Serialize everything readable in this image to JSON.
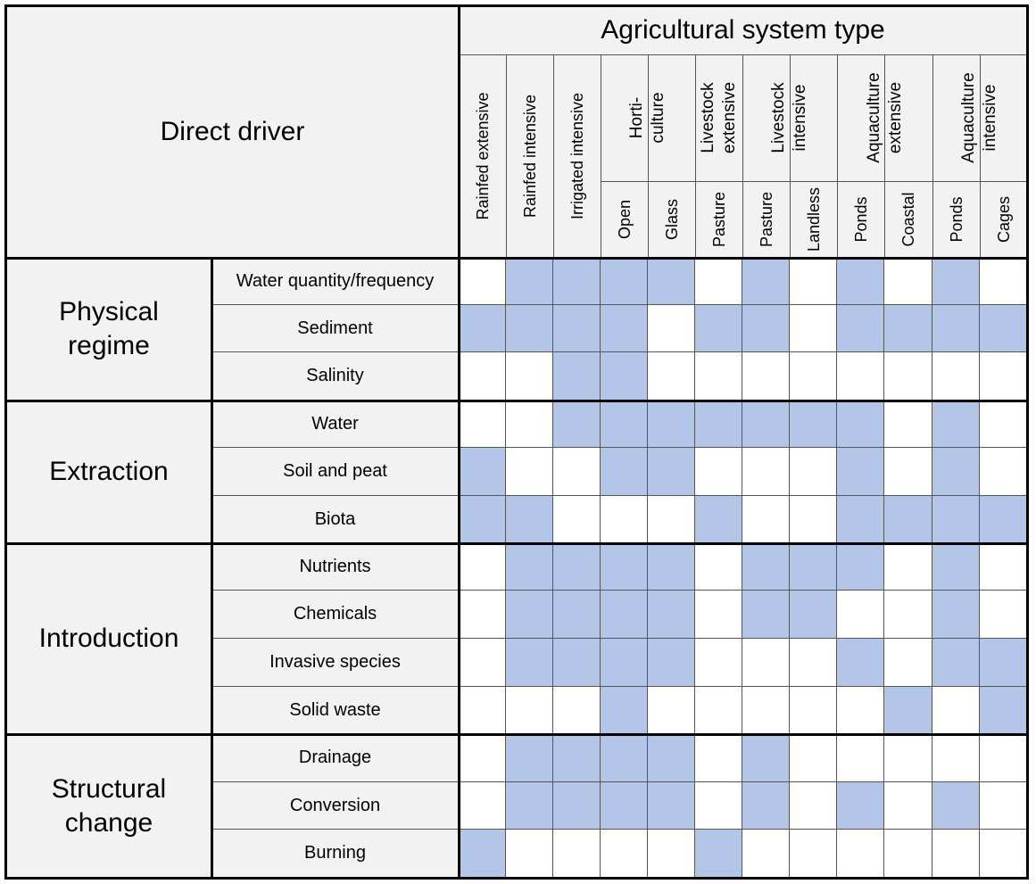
{
  "header": {
    "direct_driver": "Direct driver",
    "system_type": "Agricultural system type"
  },
  "columns": [
    {
      "id": "rainfed-extensive",
      "label": "Rainfed extensive"
    },
    {
      "id": "rainfed-intensive",
      "label": "Rainfed intensive"
    },
    {
      "id": "irrigated-intensive",
      "label": "Irrigated intensive"
    },
    {
      "id": "horti-open",
      "label": "Open",
      "group": "horticulture"
    },
    {
      "id": "horti-glass",
      "label": "Glass",
      "group": "horticulture"
    },
    {
      "id": "livestock-ext-pasture",
      "label": "Pasture",
      "group": "livestock-extensive"
    },
    {
      "id": "livestock-int-pasture",
      "label": "Pasture",
      "group": "livestock-intensive"
    },
    {
      "id": "livestock-int-landless",
      "label": "Landless",
      "group": "livestock-intensive"
    },
    {
      "id": "aqua-ext-ponds",
      "label": "Ponds",
      "group": "aquaculture-extensive"
    },
    {
      "id": "aqua-ext-coastal",
      "label": "Coastal",
      "group": "aquaculture-extensive"
    },
    {
      "id": "aqua-int-ponds",
      "label": "Ponds",
      "group": "aquaculture-intensive"
    },
    {
      "id": "aqua-int-cages",
      "label": "Cages",
      "group": "aquaculture-intensive"
    }
  ],
  "column_groups": [
    {
      "id": "horticulture",
      "lines": [
        "Horti-",
        "culture"
      ]
    },
    {
      "id": "livestock-extensive",
      "lines": [
        "Livestock",
        "extensive"
      ]
    },
    {
      "id": "livestock-intensive",
      "lines": [
        "Livestock",
        "intensive"
      ]
    },
    {
      "id": "aquaculture-extensive",
      "lines": [
        "Aquaculture",
        "extensive"
      ]
    },
    {
      "id": "aquaculture-intensive",
      "lines": [
        "Aquaculture",
        "intensive"
      ]
    }
  ],
  "categories": [
    {
      "lines": [
        "Physical",
        "regime"
      ],
      "rows": [
        {
          "label": "Water quantity/frequency",
          "cells": [
            0,
            1,
            1,
            1,
            1,
            0,
            1,
            0,
            1,
            0,
            1,
            0
          ]
        },
        {
          "label": "Sediment",
          "cells": [
            1,
            1,
            1,
            1,
            0,
            1,
            1,
            0,
            1,
            1,
            1,
            1
          ]
        },
        {
          "label": "Salinity",
          "cells": [
            0,
            0,
            1,
            1,
            0,
            0,
            0,
            0,
            0,
            0,
            0,
            0
          ]
        }
      ]
    },
    {
      "lines": [
        "Extraction"
      ],
      "rows": [
        {
          "label": "Water",
          "cells": [
            0,
            0,
            1,
            1,
            1,
            1,
            1,
            1,
            1,
            0,
            1,
            0
          ]
        },
        {
          "label": "Soil and peat",
          "cells": [
            1,
            0,
            0,
            1,
            1,
            0,
            0,
            0,
            1,
            0,
            1,
            0
          ]
        },
        {
          "label": "Biota",
          "cells": [
            1,
            1,
            0,
            0,
            0,
            1,
            0,
            0,
            1,
            1,
            1,
            1
          ]
        }
      ]
    },
    {
      "lines": [
        "Introduction"
      ],
      "rows": [
        {
          "label": "Nutrients",
          "cells": [
            0,
            1,
            1,
            1,
            1,
            0,
            1,
            1,
            1,
            0,
            1,
            0
          ]
        },
        {
          "label": "Chemicals",
          "cells": [
            0,
            1,
            1,
            1,
            1,
            0,
            1,
            1,
            0,
            0,
            1,
            0
          ]
        },
        {
          "label": "Invasive species",
          "cells": [
            0,
            1,
            1,
            1,
            1,
            0,
            0,
            0,
            1,
            0,
            1,
            1
          ]
        },
        {
          "label": "Solid waste",
          "cells": [
            0,
            0,
            0,
            1,
            0,
            0,
            0,
            0,
            0,
            1,
            0,
            1
          ]
        }
      ]
    },
    {
      "lines": [
        "Structural",
        "change"
      ],
      "rows": [
        {
          "label": "Drainage",
          "cells": [
            0,
            1,
            1,
            1,
            1,
            0,
            1,
            0,
            0,
            0,
            0,
            0
          ]
        },
        {
          "label": "Conversion",
          "cells": [
            0,
            1,
            1,
            1,
            1,
            0,
            1,
            0,
            1,
            0,
            1,
            0
          ]
        },
        {
          "label": "Burning",
          "cells": [
            1,
            0,
            0,
            0,
            0,
            1,
            0,
            0,
            0,
            0,
            0,
            0
          ]
        }
      ]
    }
  ],
  "colors": {
    "filled": "#b4c6e7",
    "empty": "#ffffff",
    "header_bg": "#f2f2f2"
  }
}
